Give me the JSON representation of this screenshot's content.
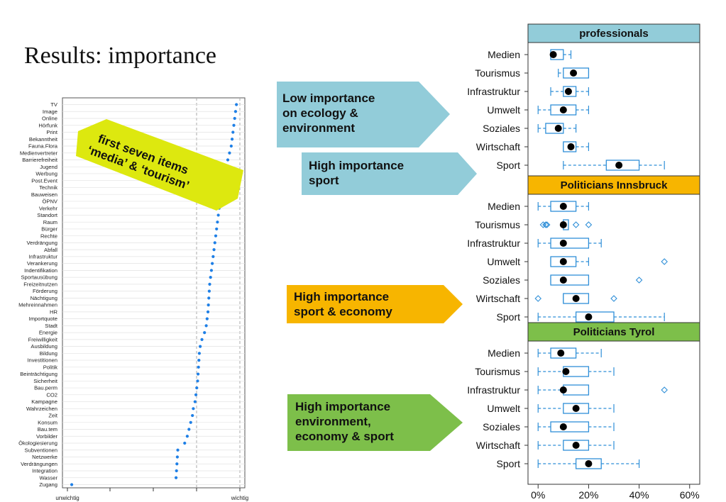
{
  "slide": {
    "title": "Results: importance"
  },
  "colors": {
    "dots": "#1e7fe6",
    "box": "#2f8fd8",
    "strip_prof": "#92ccd9",
    "strip_ibk": "#f7b500",
    "strip_tyrol": "#7dbf4a",
    "callout_blue": "#92ccd9",
    "callout_orange": "#f7b500",
    "callout_green": "#7dbf4a",
    "callout_yellow": "#dde80f"
  },
  "callouts": {
    "yellow": "first seven items\n‘media’ & ‘tourism’",
    "low_importance": "Low importance\non ecology &\nenvironment",
    "high_sport": "High importance\nsport",
    "high_sport_economy": "High importance\nsport & economy",
    "high_env": "High importance\nenvironment,\neconomy & sport"
  },
  "chart_data": [
    {
      "type": "scatter",
      "x_tick_labels": [
        "unwichtig",
        "wichtig"
      ],
      "xlim": [
        1,
        5
      ],
      "grid": true,
      "items": [
        {
          "label": "TV",
          "value": 4.92
        },
        {
          "label": "Image",
          "value": 4.9
        },
        {
          "label": "Online",
          "value": 4.88
        },
        {
          "label": "Hörfunk",
          "value": 4.86
        },
        {
          "label": "Print",
          "value": 4.84
        },
        {
          "label": "Bekanntheit",
          "value": 4.82
        },
        {
          "label": "Fauna.Flora",
          "value": 4.8
        },
        {
          "label": "Medienvertreter",
          "value": 4.76
        },
        {
          "label": "Barrierefreiheit",
          "value": 4.72
        },
        {
          "label": "Jugend",
          "value": 4.68
        },
        {
          "label": "Werbung",
          "value": 4.64
        },
        {
          "label": "Post.Event",
          "value": 4.6
        },
        {
          "label": "Technik",
          "value": 4.58
        },
        {
          "label": "Bauweisen",
          "value": 4.56
        },
        {
          "label": "ÖPNV",
          "value": 4.54
        },
        {
          "label": "Verkehr",
          "value": 4.52
        },
        {
          "label": "Standort",
          "value": 4.5
        },
        {
          "label": "Raum",
          "value": 4.48
        },
        {
          "label": "Bürger",
          "value": 4.46
        },
        {
          "label": "Rechte",
          "value": 4.44
        },
        {
          "label": "Verdrängung",
          "value": 4.42
        },
        {
          "label": "Abfall",
          "value": 4.4
        },
        {
          "label": "Infrastruktur",
          "value": 4.38
        },
        {
          "label": "Verankerung",
          "value": 4.36
        },
        {
          "label": "Indentifikation",
          "value": 4.34
        },
        {
          "label": "Sportausübung",
          "value": 4.32
        },
        {
          "label": "Freizeitnutzen",
          "value": 4.3
        },
        {
          "label": "Förderung",
          "value": 4.29
        },
        {
          "label": "Nächtigung",
          "value": 4.28
        },
        {
          "label": "Mehreinnahmen",
          "value": 4.27
        },
        {
          "label": "HR",
          "value": 4.26
        },
        {
          "label": "Importquote",
          "value": 4.24
        },
        {
          "label": "Stadt",
          "value": 4.22
        },
        {
          "label": "Energie",
          "value": 4.18
        },
        {
          "label": "Freiwilligkeit",
          "value": 4.12
        },
        {
          "label": "Ausbildung",
          "value": 4.08
        },
        {
          "label": "Bildung",
          "value": 4.06
        },
        {
          "label": "Investitionen",
          "value": 4.05
        },
        {
          "label": "Politik",
          "value": 4.04
        },
        {
          "label": "Beinträchtigung",
          "value": 4.03
        },
        {
          "label": "Sicherheit",
          "value": 4.02
        },
        {
          "label": "Bau.perm",
          "value": 4.0
        },
        {
          "label": "CO2",
          "value": 3.98
        },
        {
          "label": "Kampagne",
          "value": 3.96
        },
        {
          "label": "Wahrzeichen",
          "value": 3.92
        },
        {
          "label": "Zeit",
          "value": 3.9
        },
        {
          "label": "Konsum",
          "value": 3.86
        },
        {
          "label": "Bau.tem",
          "value": 3.82
        },
        {
          "label": "Vorbilder",
          "value": 3.78
        },
        {
          "label": "Ökologiesierung",
          "value": 3.72
        },
        {
          "label": "Subventionen",
          "value": 3.56
        },
        {
          "label": "Netzwerke",
          "value": 3.55
        },
        {
          "label": "Verdrängungen",
          "value": 3.54
        },
        {
          "label": "Integration",
          "value": 3.53
        },
        {
          "label": "Wasser",
          "value": 3.52
        },
        {
          "label": "Zugang",
          "value": 1.1
        }
      ]
    },
    {
      "type": "box",
      "xlim": [
        -4,
        64
      ],
      "x_ticks": [
        0,
        20,
        40,
        60
      ],
      "x_tick_labels": [
        "0%",
        "20%",
        "40%",
        "60%"
      ],
      "categories": [
        "Medien",
        "Tourismus",
        "Infrastruktur",
        "Umwelt",
        "Soziales",
        "Wirtschaft",
        "Sport"
      ],
      "panels": [
        {
          "name": "professionals",
          "strip_color": "#92ccd9",
          "boxes": [
            {
              "wlo": 5,
              "q1": 5,
              "med": 7,
              "q3": 10,
              "whi": 13,
              "mean": 6,
              "outliers": []
            },
            {
              "wlo": 8,
              "q1": 10,
              "med": 15,
              "q3": 20,
              "whi": 20,
              "mean": 14,
              "outliers": []
            },
            {
              "wlo": 5,
              "q1": 10,
              "med": 12,
              "q3": 15,
              "whi": 20,
              "mean": 12,
              "outliers": []
            },
            {
              "wlo": 0,
              "q1": 5,
              "med": 10,
              "q3": 15,
              "whi": 20,
              "mean": 10,
              "outliers": []
            },
            {
              "wlo": 0,
              "q1": 3,
              "med": 8,
              "q3": 10,
              "whi": 15,
              "mean": 8,
              "outliers": []
            },
            {
              "wlo": 10,
              "q1": 10,
              "med": 12,
              "q3": 15,
              "whi": 20,
              "mean": 13,
              "outliers": []
            },
            {
              "wlo": 10,
              "q1": 27,
              "med": 32,
              "q3": 40,
              "whi": 50,
              "mean": 32,
              "outliers": []
            }
          ]
        },
        {
          "name": "Politicians Innsbruck",
          "strip_color": "#f7b500",
          "boxes": [
            {
              "wlo": 0,
              "q1": 5,
              "med": 10,
              "q3": 15,
              "whi": 20,
              "mean": 10,
              "outliers": []
            },
            {
              "wlo": 10,
              "q1": 10,
              "med": 10,
              "q3": 12,
              "whi": 12,
              "mean": 10,
              "outliers": [
                2,
                3,
                3.5,
                15,
                20
              ]
            },
            {
              "wlo": 0,
              "q1": 5,
              "med": 10,
              "q3": 20,
              "whi": 25,
              "mean": 10,
              "outliers": []
            },
            {
              "wlo": 5,
              "q1": 5,
              "med": 10,
              "q3": 15,
              "whi": 20,
              "mean": 10,
              "outliers": [
                50
              ]
            },
            {
              "wlo": 5,
              "q1": 5,
              "med": 10,
              "q3": 20,
              "whi": 20,
              "mean": 10,
              "outliers": [
                40
              ]
            },
            {
              "wlo": 10,
              "q1": 10,
              "med": 15,
              "q3": 20,
              "whi": 20,
              "mean": 15,
              "outliers": [
                0,
                30
              ]
            },
            {
              "wlo": 0,
              "q1": 15,
              "med": 20,
              "q3": 30,
              "whi": 50,
              "mean": 20,
              "outliers": []
            }
          ]
        },
        {
          "name": "Politicians Tyrol",
          "strip_color": "#7dbf4a",
          "boxes": [
            {
              "wlo": 0,
              "q1": 5,
              "med": 10,
              "q3": 15,
              "whi": 25,
              "mean": 9,
              "outliers": []
            },
            {
              "wlo": 0,
              "q1": 10,
              "med": 11,
              "q3": 20,
              "whi": 30,
              "mean": 11,
              "outliers": []
            },
            {
              "wlo": 0,
              "q1": 10,
              "med": 10,
              "q3": 20,
              "whi": 20,
              "mean": 10,
              "outliers": [
                50
              ]
            },
            {
              "wlo": 0,
              "q1": 10,
              "med": 15,
              "q3": 20,
              "whi": 30,
              "mean": 15,
              "outliers": []
            },
            {
              "wlo": 0,
              "q1": 5,
              "med": 10,
              "q3": 20,
              "whi": 30,
              "mean": 10,
              "outliers": []
            },
            {
              "wlo": 0,
              "q1": 10,
              "med": 15,
              "q3": 20,
              "whi": 30,
              "mean": 15,
              "outliers": []
            },
            {
              "wlo": 0,
              "q1": 15,
              "med": 20,
              "q3": 25,
              "whi": 40,
              "mean": 20,
              "outliers": []
            }
          ]
        }
      ]
    }
  ]
}
